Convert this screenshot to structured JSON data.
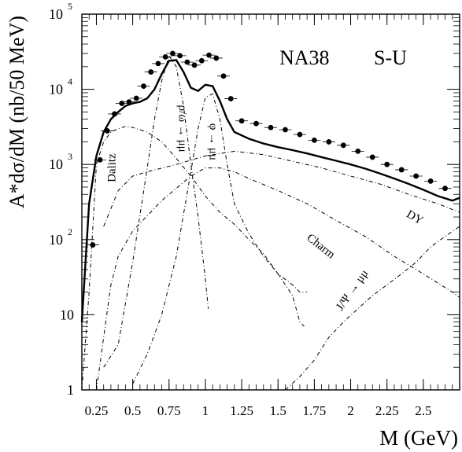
{
  "chart_data": {
    "type": "line",
    "title": "",
    "annotation_experiment": "NA38",
    "annotation_system": "S-U",
    "xlabel": "M (GeV)",
    "ylabel": "A*dσ/dM (nb/50 MeV)",
    "xlim": [
      0.15,
      2.75
    ],
    "ylim": [
      1,
      100000
    ],
    "y_scale": "log",
    "x_ticks": [
      {
        "v": 0.25,
        "label": "0.25"
      },
      {
        "v": 0.5,
        "label": "0.5"
      },
      {
        "v": 0.75,
        "label": "0.75"
      },
      {
        "v": 1.0,
        "label": "1"
      },
      {
        "v": 1.25,
        "label": "1.25"
      },
      {
        "v": 1.5,
        "label": "1.5"
      },
      {
        "v": 1.75,
        "label": "1.75"
      },
      {
        "v": 2.0,
        "label": "2"
      },
      {
        "v": 2.25,
        "label": "2.25"
      },
      {
        "v": 2.5,
        "label": "2.5"
      }
    ],
    "y_ticks": [
      {
        "v": 1,
        "label": "1"
      },
      {
        "v": 10,
        "label": "10"
      },
      {
        "v": 100,
        "label": "10",
        "exp": "2"
      },
      {
        "v": 1000,
        "label": "10",
        "exp": "3"
      },
      {
        "v": 10000,
        "label": "10",
        "exp": "4"
      },
      {
        "v": 100000,
        "label": "10",
        "exp": "5"
      }
    ],
    "curve_labels": [
      {
        "text": "Dalitz",
        "x": 0.38,
        "y": 900,
        "rotate": -90
      },
      {
        "text": "ρ/ω → μμ",
        "x": 0.82,
        "y": 3000,
        "rotate": 90
      },
      {
        "text": "φ → μμ",
        "x": 1.03,
        "y": 2000,
        "rotate": 90
      },
      {
        "text": "DY",
        "x": 2.43,
        "y": 180,
        "rotate": 30
      },
      {
        "text": "Charm",
        "x": 1.78,
        "y": 75,
        "rotate": 38
      },
      {
        "text": "J/Ψ → μμ",
        "x": 2.03,
        "y": 20,
        "rotate": -55
      }
    ],
    "series": [
      {
        "name": "data",
        "style": "points",
        "x": [
          0.225,
          0.275,
          0.325,
          0.375,
          0.425,
          0.475,
          0.525,
          0.575,
          0.625,
          0.675,
          0.725,
          0.775,
          0.825,
          0.875,
          0.925,
          0.975,
          1.025,
          1.075,
          1.125,
          1.175,
          1.25,
          1.35,
          1.45,
          1.55,
          1.65,
          1.75,
          1.85,
          1.95,
          2.05,
          2.15,
          2.25,
          2.35,
          2.45,
          2.55,
          2.65
        ],
        "y": [
          85,
          1150,
          2800,
          4700,
          6500,
          6800,
          7600,
          11000,
          17000,
          22000,
          27000,
          30000,
          28000,
          23000,
          21000,
          24000,
          28500,
          26000,
          15000,
          7500,
          3800,
          3500,
          3100,
          2900,
          2500,
          2100,
          2000,
          1800,
          1500,
          1250,
          1000,
          850,
          700,
          600,
          480
        ]
      },
      {
        "name": "total",
        "style": "solid",
        "x": [
          0.15,
          0.2,
          0.25,
          0.3,
          0.35,
          0.4,
          0.45,
          0.5,
          0.55,
          0.6,
          0.65,
          0.7,
          0.75,
          0.8,
          0.85,
          0.9,
          0.95,
          1.0,
          1.05,
          1.1,
          1.15,
          1.2,
          1.3,
          1.4,
          1.5,
          1.6,
          1.7,
          1.8,
          1.9,
          2.0,
          2.1,
          2.2,
          2.3,
          2.4,
          2.5,
          2.6,
          2.7,
          2.75
        ],
        "y": [
          8,
          300,
          1300,
          2700,
          4000,
          5000,
          6000,
          6500,
          6800,
          7600,
          10000,
          16000,
          24000,
          24500,
          17000,
          10500,
          9500,
          11500,
          11000,
          7000,
          4000,
          2700,
          2200,
          1900,
          1700,
          1550,
          1400,
          1250,
          1120,
          1000,
          880,
          760,
          650,
          550,
          460,
          380,
          330,
          360
        ]
      },
      {
        "name": "Dalitz",
        "style": "dashdot",
        "x": [
          0.15,
          0.2,
          0.25,
          0.3,
          0.35,
          0.4,
          0.45,
          0.5,
          0.6,
          0.7,
          0.8,
          0.9,
          1.0,
          1.1,
          1.2,
          1.3,
          1.4,
          1.5,
          1.6,
          1.65,
          1.7
        ],
        "y": [
          1,
          20,
          1000,
          2000,
          2700,
          3000,
          3200,
          3100,
          2700,
          2000,
          1200,
          700,
          380,
          230,
          160,
          100,
          65,
          35,
          25,
          20,
          20
        ]
      },
      {
        "name": "rho_omega",
        "style": "dashdot",
        "x": [
          0.3,
          0.4,
          0.5,
          0.6,
          0.65,
          0.7,
          0.75,
          0.8,
          0.85,
          0.9,
          0.95,
          1.0,
          1.02
        ],
        "y": [
          2,
          4,
          50,
          900,
          4000,
          13000,
          28000,
          20000,
          6000,
          1000,
          200,
          30,
          12
        ]
      },
      {
        "name": "phi",
        "style": "dashdot",
        "x": [
          0.5,
          0.6,
          0.7,
          0.8,
          0.9,
          0.95,
          1.0,
          1.05,
          1.1,
          1.15,
          1.2,
          1.3,
          1.4,
          1.5,
          1.6,
          1.65,
          1.68
        ],
        "y": [
          1.2,
          3,
          10,
          60,
          800,
          3000,
          7800,
          8700,
          4000,
          1000,
          300,
          120,
          60,
          35,
          18,
          8,
          7
        ]
      },
      {
        "name": "DY",
        "style": "dashdot",
        "x": [
          0.3,
          0.4,
          0.5,
          0.6,
          0.8,
          1.0,
          1.2,
          1.4,
          1.6,
          1.8,
          2.0,
          2.2,
          2.4,
          2.6,
          2.75
        ],
        "y": [
          150,
          450,
          700,
          800,
          1000,
          1300,
          1500,
          1350,
          1100,
          900,
          700,
          550,
          400,
          300,
          230
        ]
      },
      {
        "name": "Charm",
        "style": "dashdot",
        "x": [
          0.25,
          0.3,
          0.35,
          0.4,
          0.5,
          0.7,
          0.9,
          1.0,
          1.1,
          1.2,
          1.3,
          1.5,
          1.7,
          1.9,
          2.1,
          2.3,
          2.5,
          2.7,
          2.75
        ],
        "y": [
          1,
          5,
          25,
          60,
          130,
          330,
          700,
          900,
          900,
          800,
          650,
          450,
          300,
          180,
          110,
          60,
          35,
          20,
          17
        ]
      },
      {
        "name": "J/Psi",
        "style": "dashdot",
        "x": [
          1.55,
          1.65,
          1.75,
          1.85,
          1.95,
          2.05,
          2.15,
          2.25,
          2.35,
          2.45,
          2.55,
          2.65,
          2.75
        ],
        "y": [
          1,
          1.5,
          2.5,
          5,
          8,
          12,
          18,
          25,
          35,
          50,
          80,
          110,
          150
        ]
      }
    ]
  }
}
